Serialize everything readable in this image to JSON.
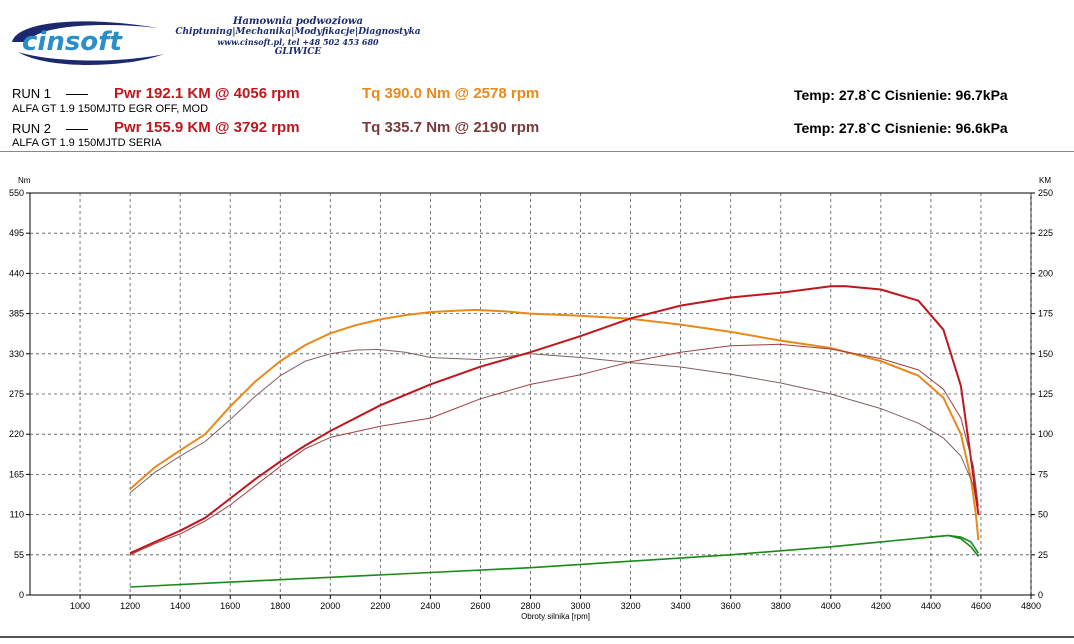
{
  "header": {
    "logo_text": "cinsoft",
    "company_line1": "Hamownia podwoziowa",
    "company_line2": "Chiptuning|Mechanika|Modyfikacje|Diagnostyka",
    "company_line3": "www.cinsoft.pl, tel +48 502 453 680",
    "company_line4": "GLIWICE"
  },
  "runs": [
    {
      "label": "RUN 1",
      "pwr": "Pwr  192.1 KM @ 4056 rpm",
      "tq": "Tq 390.0 Nm @ 2578 rpm",
      "temp": "Temp: 27.8`C   Cisnienie: 96.7kPa",
      "desc": "ALFA GT 1.9 150MJTD EGR OFF, MOD"
    },
    {
      "label": "RUN 2",
      "pwr": "Pwr  155.9 KM @ 3792 rpm",
      "tq": "Tq 335.7 Nm @ 2190 rpm",
      "temp": "Temp: 27.8`C   Cisnienie: 96.6kPa",
      "desc": "ALFA GT 1.9 150MJTD SERIA"
    }
  ],
  "colors": {
    "run1_power": "#c0161e",
    "run1_torque": "#e8891c",
    "run2_power": "#a04040",
    "run2_torque": "#806060",
    "loss": "#1a8a1a",
    "grid": "#444444"
  },
  "chart_data": {
    "type": "line",
    "xlabel": "Obroty silnika [rpm]",
    "ylabel_left": "Nm",
    "ylabel_right": "KM",
    "xlim": [
      800,
      4800
    ],
    "xticks": [
      1000,
      1200,
      1400,
      1600,
      1800,
      2000,
      2200,
      2400,
      2600,
      2800,
      3000,
      3200,
      3400,
      3600,
      3800,
      4000,
      4200,
      4400,
      4600,
      4800
    ],
    "ylim_left": [
      0,
      550
    ],
    "yticks_left": [
      0,
      55,
      110,
      165,
      220,
      275,
      330,
      385,
      440,
      495,
      550
    ],
    "ylim_right": [
      0,
      250
    ],
    "yticks_right": [
      0,
      25,
      50,
      75,
      100,
      125,
      150,
      175,
      200,
      225,
      250
    ],
    "grid": true,
    "series": [
      {
        "axis": "left",
        "color_key": "run1_torque",
        "x": [
          1200,
          1300,
          1400,
          1500,
          1600,
          1700,
          1800,
          1900,
          2000,
          2100,
          2200,
          2300,
          2400,
          2500,
          2578,
          2700,
          2800,
          3000,
          3200,
          3400,
          3600,
          3800,
          4000,
          4200,
          4350,
          4450,
          4520,
          4560,
          4580,
          4590
        ],
        "y": [
          145,
          175,
          198,
          220,
          258,
          292,
          320,
          342,
          358,
          369,
          377,
          383,
          387,
          389,
          390,
          388,
          385,
          382,
          378,
          370,
          360,
          348,
          338,
          320,
          300,
          270,
          220,
          160,
          110,
          75
        ]
      },
      {
        "axis": "left",
        "color_key": "run2_torque",
        "x": [
          1200,
          1300,
          1400,
          1500,
          1600,
          1700,
          1800,
          1900,
          2000,
          2100,
          2190,
          2300,
          2400,
          2600,
          2800,
          3000,
          3200,
          3400,
          3600,
          3800,
          4000,
          4200,
          4350,
          4450,
          4520,
          4570,
          4590
        ],
        "y": [
          140,
          168,
          190,
          210,
          240,
          272,
          300,
          320,
          330,
          335,
          336,
          332,
          325,
          322,
          330,
          325,
          318,
          312,
          302,
          290,
          275,
          255,
          235,
          215,
          190,
          150,
          110
        ]
      },
      {
        "axis": "right",
        "color_key": "run1_power",
        "x": [
          1200,
          1300,
          1400,
          1500,
          1600,
          1700,
          1800,
          1900,
          2000,
          2200,
          2400,
          2600,
          2800,
          3000,
          3200,
          3400,
          3600,
          3800,
          4000,
          4056,
          4200,
          4350,
          4450,
          4520,
          4560,
          4590
        ],
        "y": [
          26,
          33,
          40,
          48,
          60,
          72,
          83,
          93,
          102,
          118,
          131,
          142,
          151,
          161,
          172,
          180,
          185,
          188,
          192,
          192.1,
          190,
          183,
          165,
          130,
          85,
          50
        ]
      },
      {
        "axis": "right",
        "color_key": "run2_power",
        "x": [
          1200,
          1300,
          1400,
          1500,
          1600,
          1700,
          1800,
          1900,
          2000,
          2200,
          2400,
          2500,
          2600,
          2800,
          3000,
          3200,
          3400,
          3600,
          3792,
          4000,
          4200,
          4350,
          4450,
          4520,
          4570,
          4590
        ],
        "y": [
          25,
          32,
          38,
          46,
          56,
          68,
          80,
          91,
          98,
          105,
          110,
          116,
          122,
          131,
          137,
          145,
          151,
          155,
          155.9,
          153,
          147,
          140,
          128,
          110,
          80,
          55
        ]
      },
      {
        "axis": "right",
        "color_key": "loss",
        "x": [
          1200,
          1600,
          2000,
          2400,
          2800,
          3200,
          3600,
          4000,
          4200,
          4400,
          4470,
          4520,
          4560,
          4590
        ],
        "y": [
          5,
          8,
          11,
          14,
          17,
          21,
          25,
          30,
          33,
          36,
          37,
          36,
          33,
          26
        ]
      },
      {
        "axis": "right",
        "color_key": "loss",
        "x": [
          4400,
          4470,
          4520,
          4560,
          4590
        ],
        "y": [
          36,
          37,
          35,
          30,
          24
        ]
      }
    ]
  }
}
